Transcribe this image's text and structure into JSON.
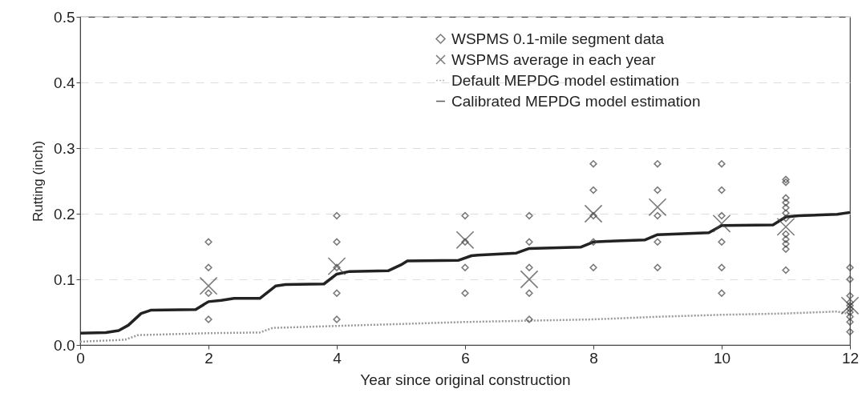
{
  "chart_data": {
    "type": "scatter",
    "xlabel": "Year since original construction",
    "ylabel": "Rutting (inch)",
    "xlim": [
      0,
      12
    ],
    "xticks": [
      0,
      2,
      4,
      6,
      8,
      10,
      12
    ],
    "ylim": [
      0,
      0.5
    ],
    "yticks": [
      {
        "value": 0,
        "label": "0.0"
      },
      0.1,
      0.2,
      0.3,
      0.4,
      0.5
    ],
    "grid": "y",
    "legend": "top right",
    "series": [
      {
        "name": "WSPMS 0.1-mile segment data",
        "marker": "diamond",
        "color": "#444444",
        "x": [
          2,
          2,
          2,
          2,
          4,
          4,
          4,
          4,
          4,
          6,
          6,
          6,
          6,
          7,
          7,
          7,
          7,
          7,
          8,
          8,
          8,
          8,
          8,
          9,
          9,
          9,
          9,
          9,
          10,
          10,
          10,
          10,
          10,
          10,
          11,
          11,
          11,
          11,
          11,
          11,
          11,
          11,
          11,
          11,
          11,
          11,
          12,
          12,
          12,
          12,
          12,
          12,
          12,
          12,
          12,
          12
        ],
        "values": [
          0.039,
          0.079,
          0.118,
          0.157,
          0.039,
          0.079,
          0.118,
          0.157,
          0.197,
          0.079,
          0.118,
          0.157,
          0.197,
          0.039,
          0.079,
          0.118,
          0.157,
          0.197,
          0.118,
          0.157,
          0.197,
          0.236,
          0.276,
          0.118,
          0.157,
          0.197,
          0.236,
          0.276,
          0.079,
          0.118,
          0.157,
          0.197,
          0.236,
          0.276,
          0.114,
          0.146,
          0.154,
          0.161,
          0.169,
          0.193,
          0.201,
          0.209,
          0.217,
          0.224,
          0.248,
          0.252,
          0.02,
          0.035,
          0.043,
          0.05,
          0.055,
          0.06,
          0.065,
          0.075,
          0.1,
          0.118
        ]
      },
      {
        "name": "WSPMS average in each year",
        "marker": "cross",
        "color": "#444444",
        "x": [
          2,
          4,
          6,
          7,
          8,
          9,
          10,
          11,
          12
        ],
        "values": [
          0.09,
          0.12,
          0.16,
          0.1,
          0.2,
          0.21,
          0.185,
          0.18,
          0.06
        ]
      },
      {
        "name": "Default MEPDG model estimation",
        "type": "line",
        "line_style": "dotted",
        "color": "#999999",
        "x": [
          0,
          0.7,
          0.9,
          2,
          2.8,
          3,
          4,
          5,
          6,
          7,
          8,
          9,
          10,
          11,
          11.8,
          12
        ],
        "values": [
          0.005,
          0.008,
          0.015,
          0.018,
          0.019,
          0.026,
          0.029,
          0.032,
          0.035,
          0.037,
          0.039,
          0.043,
          0.046,
          0.048,
          0.051,
          0.047
        ]
      },
      {
        "name": "Calibrated MEPDG model estimation",
        "type": "line",
        "line_style": "solid",
        "color": "#222222",
        "x": [
          0,
          0.4,
          0.6,
          0.75,
          0.95,
          1.1,
          1.8,
          2,
          2.2,
          2.4,
          2.8,
          3.05,
          3.2,
          3.8,
          4,
          4.2,
          4.8,
          5,
          5.1,
          5.9,
          6.1,
          6.2,
          6.8,
          7,
          7.8,
          8,
          8.2,
          8.8,
          9,
          9.8,
          10,
          10.8,
          11,
          11.2,
          11.8,
          12
        ],
        "values": [
          0.018,
          0.019,
          0.022,
          0.03,
          0.048,
          0.053,
          0.054,
          0.066,
          0.068,
          0.071,
          0.071,
          0.09,
          0.092,
          0.093,
          0.108,
          0.112,
          0.113,
          0.122,
          0.128,
          0.129,
          0.136,
          0.137,
          0.14,
          0.147,
          0.149,
          0.157,
          0.158,
          0.16,
          0.168,
          0.171,
          0.182,
          0.183,
          0.195,
          0.197,
          0.199,
          0.202
        ]
      }
    ]
  }
}
